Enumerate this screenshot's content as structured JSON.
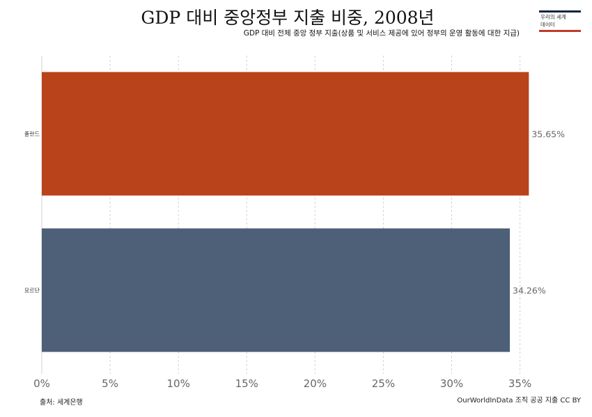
{
  "chart_data": {
    "type": "bar",
    "orientation": "horizontal",
    "title": "GDP 대비 중앙정부 지출 비중, 2008년",
    "subtitle": "GDP 대비 전체 중앙 정부 지출(상품 및 서비스 제공에 있어 정부의 운영 활동에 대한 지급)",
    "categories": [
      "폴란드",
      "요르단"
    ],
    "values": [
      35.65,
      34.26
    ],
    "value_labels": [
      "35.65%",
      "34.26%"
    ],
    "colors": [
      "#b9431b",
      "#4e5f78"
    ],
    "xlim": [
      0,
      36.5
    ],
    "xticks": [
      0,
      5,
      10,
      15,
      20,
      25,
      30,
      35
    ],
    "xtick_labels": [
      "0%",
      "5%",
      "10%",
      "15%",
      "20%",
      "25%",
      "30%",
      "35%"
    ],
    "grid": "vertical dashed",
    "legend": "none"
  },
  "logo": {
    "line1": "우리의 세계",
    "line2": "데이터"
  },
  "footer": {
    "source": "출처: 세계은행",
    "note": "OurWorldInData 조직 공공 지출 CC BY"
  }
}
